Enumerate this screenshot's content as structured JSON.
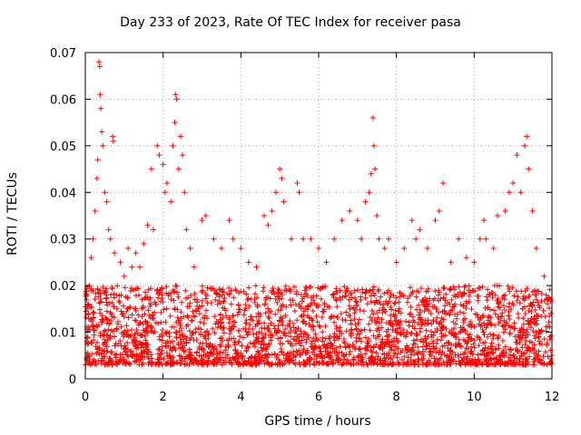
{
  "chart_data": {
    "type": "scatter",
    "title": "Day 233 of 2023, Rate Of TEC Index for receiver pasa",
    "xlabel": "GPS time / hours",
    "ylabel": "ROTI / TECUs",
    "xlim": [
      0,
      12
    ],
    "ylim": [
      0,
      0.07
    ],
    "xticks": [
      0,
      2,
      4,
      6,
      8,
      10,
      12
    ],
    "yticks": [
      0,
      0.01,
      0.02,
      0.03,
      0.04,
      0.05,
      0.06,
      0.07
    ],
    "xtick_labels": [
      "0",
      "2",
      "4",
      "6",
      "8",
      "10",
      "12"
    ],
    "ytick_labels": [
      "0",
      "0.01",
      "0.02",
      "0.03",
      "0.04",
      "0.05",
      "0.06",
      "0.07"
    ],
    "grid": true,
    "marker": "+",
    "color": "#ff0000",
    "baseline_band": [
      0.003,
      0.02
    ],
    "points": [
      [
        0.05,
        0.015
      ],
      [
        0.1,
        0.02
      ],
      [
        0.15,
        0.026
      ],
      [
        0.2,
        0.03
      ],
      [
        0.25,
        0.036
      ],
      [
        0.3,
        0.043
      ],
      [
        0.32,
        0.047
      ],
      [
        0.35,
        0.068
      ],
      [
        0.37,
        0.067
      ],
      [
        0.38,
        0.061
      ],
      [
        0.4,
        0.058
      ],
      [
        0.42,
        0.053
      ],
      [
        0.45,
        0.05
      ],
      [
        0.5,
        0.04
      ],
      [
        0.55,
        0.038
      ],
      [
        0.6,
        0.032
      ],
      [
        0.65,
        0.03
      ],
      [
        0.7,
        0.052
      ],
      [
        0.72,
        0.051
      ],
      [
        0.75,
        0.027
      ],
      [
        0.9,
        0.025
      ],
      [
        1.0,
        0.022
      ],
      [
        1.1,
        0.028
      ],
      [
        1.2,
        0.024
      ],
      [
        1.3,
        0.027
      ],
      [
        1.4,
        0.024
      ],
      [
        1.5,
        0.029
      ],
      [
        1.6,
        0.033
      ],
      [
        1.7,
        0.045
      ],
      [
        1.75,
        0.032
      ],
      [
        1.85,
        0.05
      ],
      [
        1.9,
        0.048
      ],
      [
        2.0,
        0.046
      ],
      [
        2.05,
        0.04
      ],
      [
        2.1,
        0.042
      ],
      [
        2.2,
        0.038
      ],
      [
        2.25,
        0.05
      ],
      [
        2.3,
        0.055
      ],
      [
        2.32,
        0.061
      ],
      [
        2.35,
        0.06
      ],
      [
        2.4,
        0.045
      ],
      [
        2.45,
        0.052
      ],
      [
        2.5,
        0.048
      ],
      [
        2.55,
        0.04
      ],
      [
        2.6,
        0.032
      ],
      [
        2.7,
        0.028
      ],
      [
        2.8,
        0.024
      ],
      [
        3.0,
        0.034
      ],
      [
        3.1,
        0.035
      ],
      [
        3.3,
        0.03
      ],
      [
        3.5,
        0.028
      ],
      [
        3.7,
        0.034
      ],
      [
        3.8,
        0.03
      ],
      [
        4.0,
        0.028
      ],
      [
        4.2,
        0.025
      ],
      [
        4.4,
        0.024
      ],
      [
        4.6,
        0.035
      ],
      [
        4.7,
        0.033
      ],
      [
        4.8,
        0.036
      ],
      [
        4.9,
        0.04
      ],
      [
        5.0,
        0.045
      ],
      [
        5.05,
        0.043
      ],
      [
        5.1,
        0.038
      ],
      [
        5.3,
        0.03
      ],
      [
        5.45,
        0.042
      ],
      [
        5.5,
        0.04
      ],
      [
        5.6,
        0.03
      ],
      [
        5.8,
        0.03
      ],
      [
        6.0,
        0.028
      ],
      [
        6.2,
        0.025
      ],
      [
        6.4,
        0.03
      ],
      [
        6.6,
        0.034
      ],
      [
        6.8,
        0.036
      ],
      [
        7.0,
        0.034
      ],
      [
        7.1,
        0.03
      ],
      [
        7.2,
        0.038
      ],
      [
        7.3,
        0.04
      ],
      [
        7.35,
        0.044
      ],
      [
        7.4,
        0.056
      ],
      [
        7.42,
        0.05
      ],
      [
        7.45,
        0.045
      ],
      [
        7.5,
        0.035
      ],
      [
        7.55,
        0.03
      ],
      [
        7.7,
        0.028
      ],
      [
        7.8,
        0.03
      ],
      [
        8.0,
        0.025
      ],
      [
        8.2,
        0.028
      ],
      [
        8.4,
        0.034
      ],
      [
        8.5,
        0.03
      ],
      [
        8.6,
        0.032
      ],
      [
        8.8,
        0.028
      ],
      [
        9.0,
        0.034
      ],
      [
        9.1,
        0.036
      ],
      [
        9.2,
        0.042
      ],
      [
        9.4,
        0.025
      ],
      [
        9.6,
        0.03
      ],
      [
        9.8,
        0.026
      ],
      [
        10.0,
        0.025
      ],
      [
        10.15,
        0.03
      ],
      [
        10.25,
        0.034
      ],
      [
        10.3,
        0.03
      ],
      [
        10.5,
        0.028
      ],
      [
        10.6,
        0.035
      ],
      [
        10.8,
        0.036
      ],
      [
        10.9,
        0.04
      ],
      [
        11.0,
        0.042
      ],
      [
        11.1,
        0.048
      ],
      [
        11.2,
        0.04
      ],
      [
        11.3,
        0.05
      ],
      [
        11.35,
        0.052
      ],
      [
        11.4,
        0.045
      ],
      [
        11.5,
        0.036
      ],
      [
        11.6,
        0.028
      ],
      [
        11.8,
        0.022
      ]
    ]
  }
}
